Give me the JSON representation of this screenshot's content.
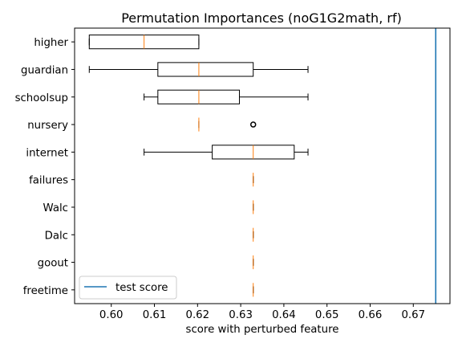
{
  "chart_data": {
    "type": "boxplot",
    "title": "Permutation Importances (noG1G2math, rf)",
    "xlabel": "score with perturbed feature",
    "ylabel": "",
    "xlim": [
      0.5915,
      0.6785
    ],
    "xticks": [
      0.6,
      0.61,
      0.62,
      0.63,
      0.64,
      0.65,
      0.66,
      0.67
    ],
    "xtick_labels": [
      "0.60",
      "0.61",
      "0.62",
      "0.63",
      "0.64",
      "0.65",
      "0.66",
      "0.67"
    ],
    "grid": false,
    "legend": {
      "location": "lower-left",
      "entries": [
        "test score"
      ]
    },
    "colors": {
      "box": "#000000",
      "median": "#ff7f0e",
      "test_line": "#1f77b4"
    },
    "test_score": 0.6752,
    "features": [
      {
        "name": "higher",
        "whisker_low": 0.5949,
        "q1": 0.5949,
        "median": 0.6076,
        "q3": 0.6203,
        "whisker_high": 0.6203,
        "fliers": []
      },
      {
        "name": "guardian",
        "whisker_low": 0.5949,
        "q1": 0.6108,
        "median": 0.6203,
        "q3": 0.6329,
        "whisker_high": 0.6456,
        "fliers": []
      },
      {
        "name": "schoolsup",
        "whisker_low": 0.6076,
        "q1": 0.6108,
        "median": 0.6203,
        "q3": 0.6297,
        "whisker_high": 0.6456,
        "fliers": []
      },
      {
        "name": "nursery",
        "whisker_low": 0.6203,
        "q1": 0.6203,
        "median": 0.6203,
        "q3": 0.6203,
        "whisker_high": 0.6203,
        "fliers": [
          0.6329
        ]
      },
      {
        "name": "internet",
        "whisker_low": 0.6076,
        "q1": 0.6234,
        "median": 0.6329,
        "q3": 0.6424,
        "whisker_high": 0.6456,
        "fliers": []
      },
      {
        "name": "failures",
        "whisker_low": 0.6329,
        "q1": 0.6329,
        "median": 0.6329,
        "q3": 0.6329,
        "whisker_high": 0.6329,
        "fliers": []
      },
      {
        "name": "Walc",
        "whisker_low": 0.6329,
        "q1": 0.6329,
        "median": 0.6329,
        "q3": 0.6329,
        "whisker_high": 0.6329,
        "fliers": []
      },
      {
        "name": "Dalc",
        "whisker_low": 0.6329,
        "q1": 0.6329,
        "median": 0.6329,
        "q3": 0.6329,
        "whisker_high": 0.6329,
        "fliers": []
      },
      {
        "name": "goout",
        "whisker_low": 0.6329,
        "q1": 0.6329,
        "median": 0.6329,
        "q3": 0.6329,
        "whisker_high": 0.6329,
        "fliers": []
      },
      {
        "name": "freetime",
        "whisker_low": 0.6329,
        "q1": 0.6329,
        "median": 0.6329,
        "q3": 0.6329,
        "whisker_high": 0.6329,
        "fliers": []
      }
    ]
  }
}
